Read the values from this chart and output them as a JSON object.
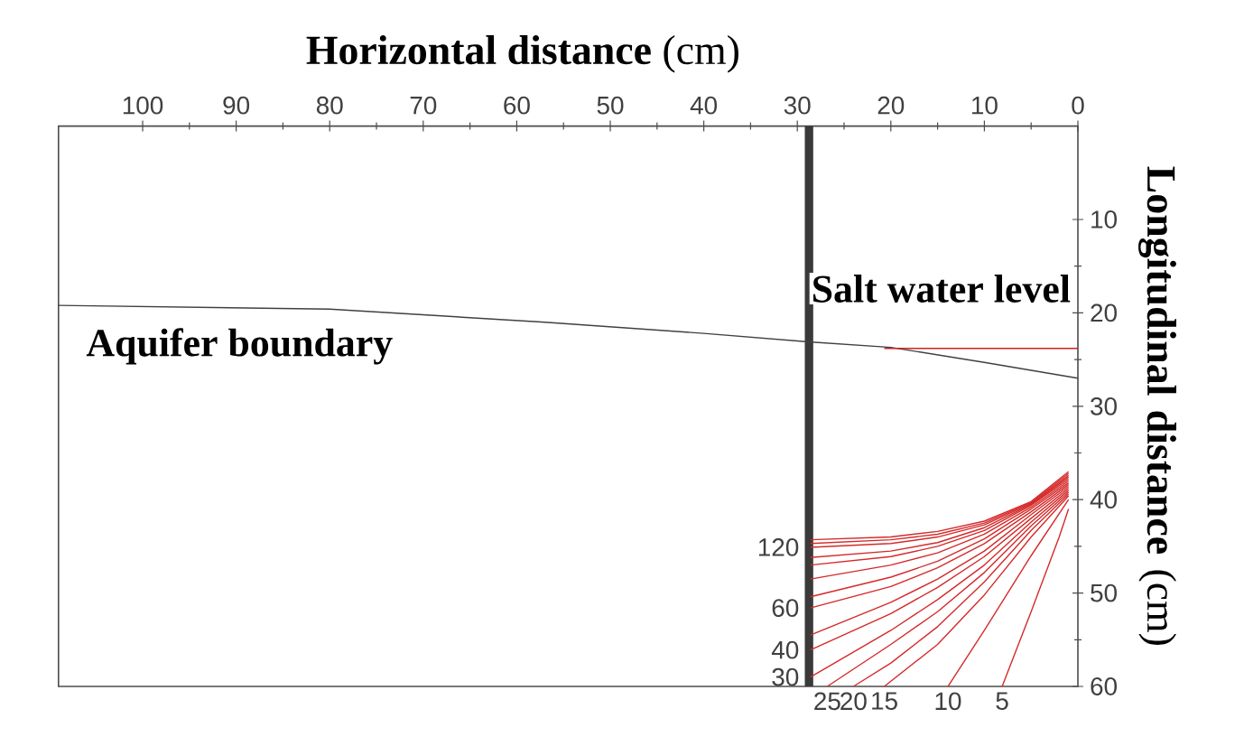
{
  "chart_data": {
    "type": "line",
    "xlabel": "**Horizontal distance** (cm)",
    "ylabel": "**Longitudinal distance** (cm)",
    "xlim": [
      109,
      0
    ],
    "ylim": [
      60,
      0
    ],
    "xticks": [
      0,
      10,
      20,
      30,
      40,
      50,
      60,
      70,
      80,
      90,
      100
    ],
    "yticks": [
      10,
      20,
      30,
      40,
      50,
      60
    ],
    "bands": [
      {
        "axis": "x",
        "from": 29.2,
        "to": 28.3,
        "color": "#3a3a3a"
      }
    ],
    "annotations": [
      "Aquifer boundary",
      "Salt water level",
      {
        "text": "120",
        "x": 28.6,
        "y": 45.1
      },
      {
        "text": "60",
        "x": 28.6,
        "y": 51.6
      },
      {
        "text": "40",
        "x": 28.6,
        "y": 56.1
      },
      {
        "text": "30",
        "x": 28.6,
        "y": 59
      },
      {
        "text": "25",
        "x": 26.8,
        "y": 60
      },
      {
        "text": "20",
        "x": 24,
        "y": 60
      },
      {
        "text": "15",
        "x": 20.7,
        "y": 60
      },
      {
        "text": "10",
        "x": 13.9,
        "y": 60
      },
      {
        "text": "5",
        "x": 8.1,
        "y": 60
      }
    ],
    "series": [
      {
        "color": "#404040",
        "x": [
          109,
          80,
          57,
          40,
          28.8,
          20,
          10,
          0
        ],
        "values": [
          19.2,
          19.6,
          21,
          22.2,
          23.1,
          23.7,
          25.3,
          27
        ]
      },
      {
        "color": "#cc2222",
        "x": [
          20.7,
          0
        ],
        "values": [
          23.8,
          23.8
        ]
      },
      {
        "color": "#d42a2a",
        "x": [
          28.6,
          20,
          15,
          10,
          5,
          1
        ],
        "values": [
          44.3,
          44.0,
          43.4,
          42.3,
          40.2,
          37.0
        ]
      },
      {
        "color": "#d42a2a",
        "x": [
          28.6,
          20,
          15,
          10,
          5,
          1
        ],
        "values": [
          44.7,
          44.3,
          43.7,
          42.5,
          40.3,
          37.2
        ]
      },
      {
        "color": "#d42a2a",
        "x": [
          28.6,
          20,
          15,
          10,
          5,
          1
        ],
        "values": [
          45.1,
          44.7,
          44.0,
          42.7,
          40.4,
          37.4
        ]
      },
      {
        "color": "#d42a2a",
        "x": [
          28.6,
          20,
          15,
          10,
          5,
          1
        ],
        "values": [
          46.2,
          45.5,
          44.6,
          43.0,
          40.5,
          37.6
        ]
      },
      {
        "color": "#d42a2a",
        "x": [
          28.6,
          20,
          15,
          10,
          5,
          1
        ],
        "values": [
          47.0,
          46.1,
          45.0,
          43.3,
          40.6,
          37.8
        ]
      },
      {
        "color": "#d42a2a",
        "x": [
          28.6,
          20,
          15,
          10,
          5,
          1
        ],
        "values": [
          48.5,
          47.0,
          45.7,
          43.7,
          40.8,
          38.0
        ]
      },
      {
        "color": "#d42a2a",
        "x": [
          28.6,
          20,
          15,
          10,
          5,
          1
        ],
        "values": [
          50.4,
          48.3,
          46.6,
          44.2,
          41.0,
          38.2
        ]
      },
      {
        "color": "#d42a2a",
        "x": [
          28.6,
          20,
          15,
          10,
          5,
          1
        ],
        "values": [
          51.6,
          49.3,
          47.3,
          44.7,
          41.3,
          38.4
        ]
      },
      {
        "color": "#d42a2a",
        "x": [
          28.6,
          20,
          15,
          10,
          5,
          1
        ],
        "values": [
          54.5,
          51.0,
          48.5,
          45.5,
          41.6,
          38.6
        ]
      },
      {
        "color": "#d42a2a",
        "x": [
          28.6,
          20,
          15,
          10,
          5,
          1
        ],
        "values": [
          56.1,
          52.2,
          49.4,
          46.1,
          42.0,
          38.8
        ]
      },
      {
        "color": "#d42a2a",
        "x": [
          28.6,
          20,
          15,
          10,
          5,
          1
        ],
        "values": [
          59,
          54.0,
          50.7,
          47.0,
          42.4,
          39.0
        ]
      },
      {
        "color": "#d42a2a",
        "x": [
          26.8,
          20,
          15,
          10,
          5,
          1
        ],
        "values": [
          60,
          55.5,
          52.0,
          47.8,
          42.8,
          39.2
        ]
      },
      {
        "color": "#d42a2a",
        "x": [
          24,
          20,
          15,
          10,
          5,
          1
        ],
        "values": [
          60,
          57.5,
          53.6,
          48.8,
          43.3,
          39.4
        ]
      },
      {
        "color": "#d42a2a",
        "x": [
          20.7,
          15,
          10,
          5,
          1
        ],
        "values": [
          60,
          55.5,
          50.2,
          44.0,
          39.6
        ]
      },
      {
        "color": "#d42a2a",
        "x": [
          13.9,
          10,
          5,
          1
        ],
        "values": [
          60,
          54.0,
          46.0,
          40.0
        ]
      },
      {
        "color": "#d42a2a",
        "x": [
          8.1,
          5,
          2,
          1
        ],
        "values": [
          60,
          52.0,
          44.0,
          41.0
        ]
      }
    ]
  }
}
